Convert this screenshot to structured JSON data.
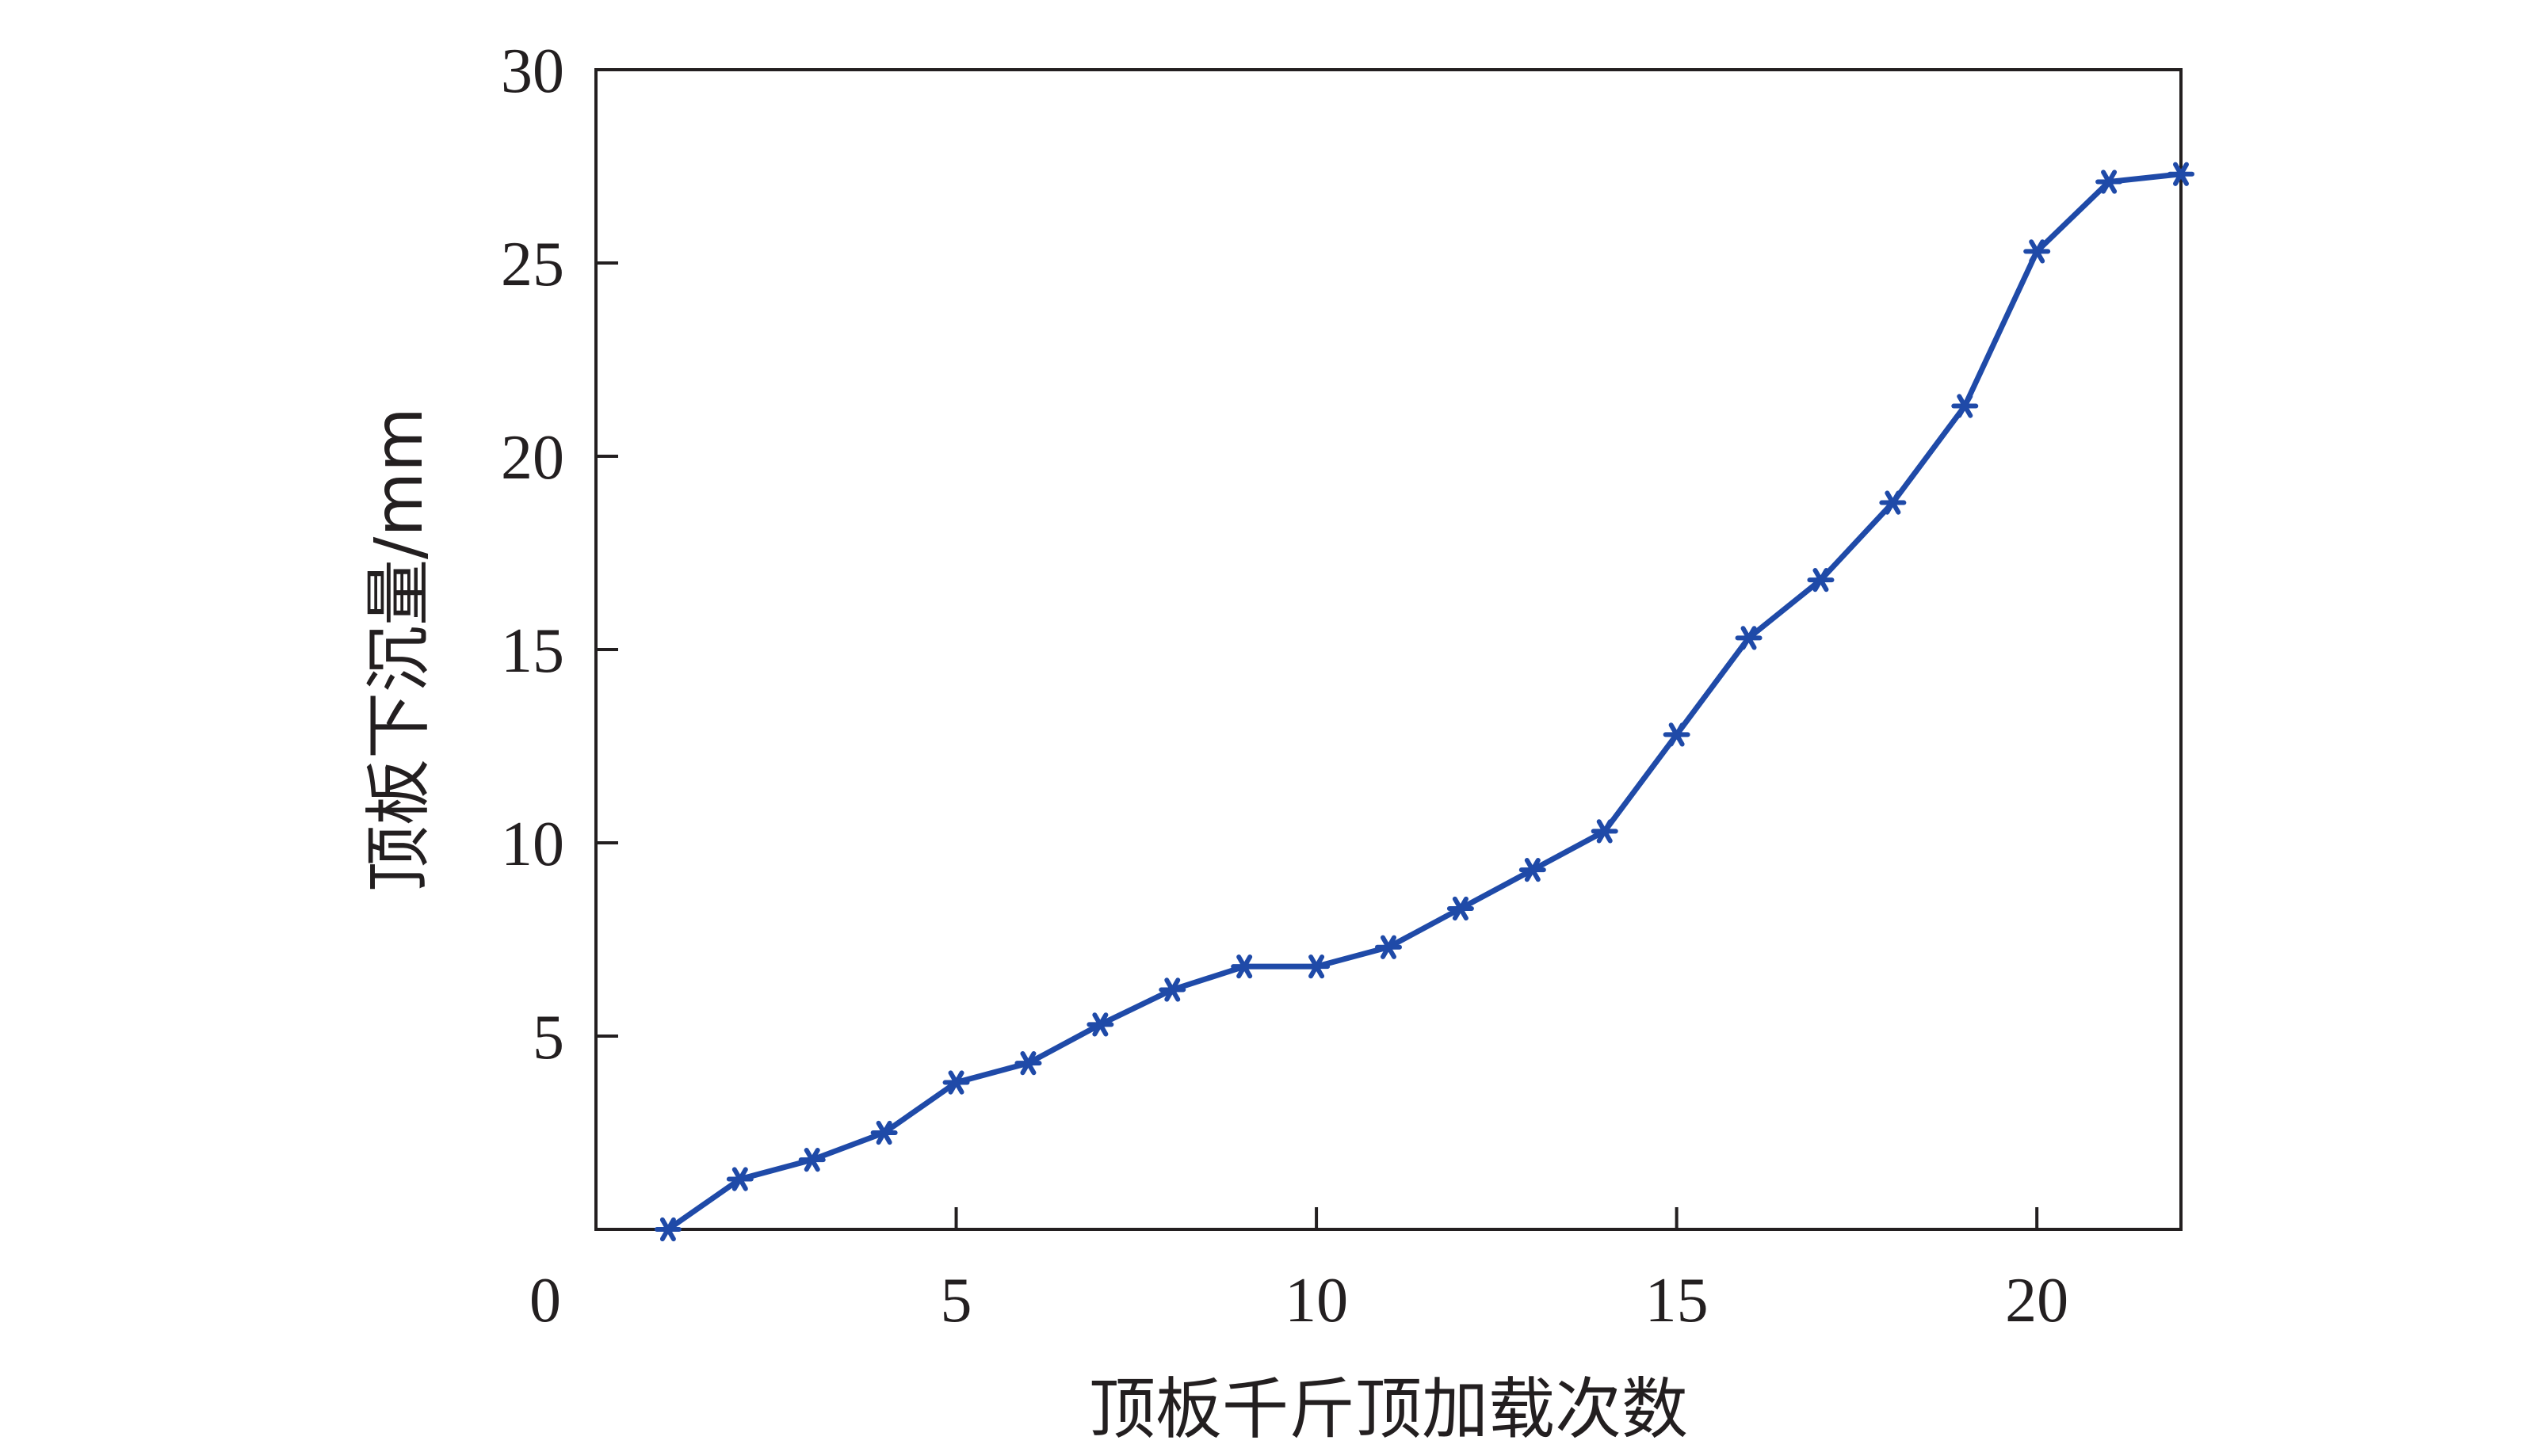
{
  "chart_data": {
    "type": "line",
    "title": "",
    "xlabel": "顶板千斤顶加载次数",
    "ylabel": "顶板下沉量/mm",
    "xlim": [
      0,
      22
    ],
    "ylim": [
      0,
      30
    ],
    "x_ticks": [
      5,
      10,
      15,
      20
    ],
    "y_ticks": [
      5,
      10,
      15,
      20,
      25,
      30
    ],
    "origin_label": "0",
    "grid": false,
    "legend": "none",
    "series": [
      {
        "color": "#1f4aa8",
        "marker": "asterisk",
        "x": [
          1,
          2,
          3,
          4,
          5,
          6,
          7,
          8,
          9,
          10,
          11,
          12,
          13,
          14,
          15,
          16,
          17,
          18,
          19,
          20,
          21,
          22
        ],
        "y": [
          0.0,
          1.3,
          1.8,
          2.5,
          3.8,
          4.3,
          5.3,
          6.2,
          6.8,
          6.8,
          7.3,
          8.3,
          9.3,
          10.3,
          12.8,
          15.3,
          16.8,
          18.8,
          21.3,
          25.3,
          27.1,
          27.3
        ]
      }
    ]
  }
}
